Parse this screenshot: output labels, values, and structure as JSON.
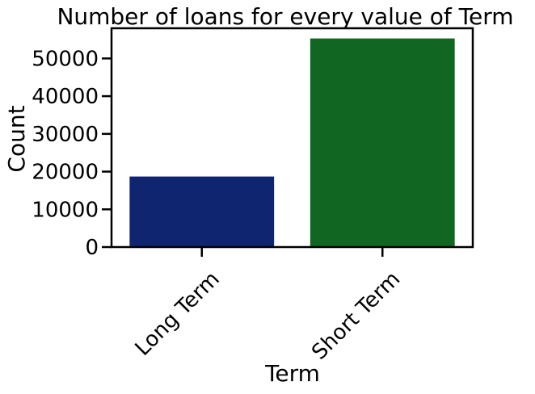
{
  "chart_data": {
    "type": "bar",
    "title": "Number of loans for every value of Term",
    "xlabel": "Term",
    "ylabel": "Count",
    "categories": [
      "Long Term",
      "Short Term"
    ],
    "values": [
      18700,
      55300
    ],
    "colors": [
      "#0f2570",
      "#116622"
    ],
    "ylim": [
      0,
      58000
    ],
    "yticks": [
      0,
      10000,
      20000,
      30000,
      40000,
      50000
    ],
    "ytick_labels": [
      "0",
      "10000",
      "20000",
      "30000",
      "40000",
      "50000"
    ],
    "xtick_rotation_deg": -45,
    "grid": false,
    "legend": "none"
  }
}
